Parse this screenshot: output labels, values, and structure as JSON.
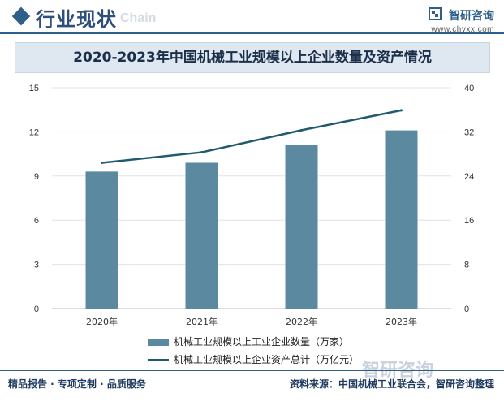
{
  "header": {
    "section_title": "行业现状",
    "section_title_en": "Chain",
    "brand_name": "智研咨询",
    "brand_url": "www.chyxx.com"
  },
  "footer": {
    "left_text": "精品报告 · 专项定制 · 品质服务",
    "right_text": "资料来源：中国机械工业联合会，智研咨询整理",
    "watermark": "智研咨询"
  },
  "colors": {
    "bar": "#5b8aa0",
    "line": "#1f5a6e",
    "accent": "#2e5f8a"
  },
  "chart_data": {
    "type": "bar",
    "title": "2020-2023年中国机械工业规模以上企业数量及资产情况",
    "categories": [
      "2020年",
      "2021年",
      "2022年",
      "2023年"
    ],
    "series": [
      {
        "name": "机械工业规模以上工业企业数量（万家）",
        "type": "bar",
        "axis": "left",
        "values": [
          9.3,
          9.9,
          11.1,
          12.1
        ]
      },
      {
        "name": "机械工业规模以上企业资产总计（万亿元）",
        "type": "line",
        "axis": "right",
        "values": [
          26.4,
          28.3,
          32.3,
          35.9
        ]
      }
    ],
    "left_axis": {
      "ylim": [
        0,
        15
      ],
      "ticks": [
        "0",
        "3",
        "6",
        "9",
        "12",
        "15"
      ]
    },
    "right_axis": {
      "ylim": [
        0,
        40
      ],
      "ticks": [
        "0",
        "8",
        "16",
        "24",
        "32",
        "40"
      ]
    },
    "legend_position": "bottom",
    "grid": true
  }
}
